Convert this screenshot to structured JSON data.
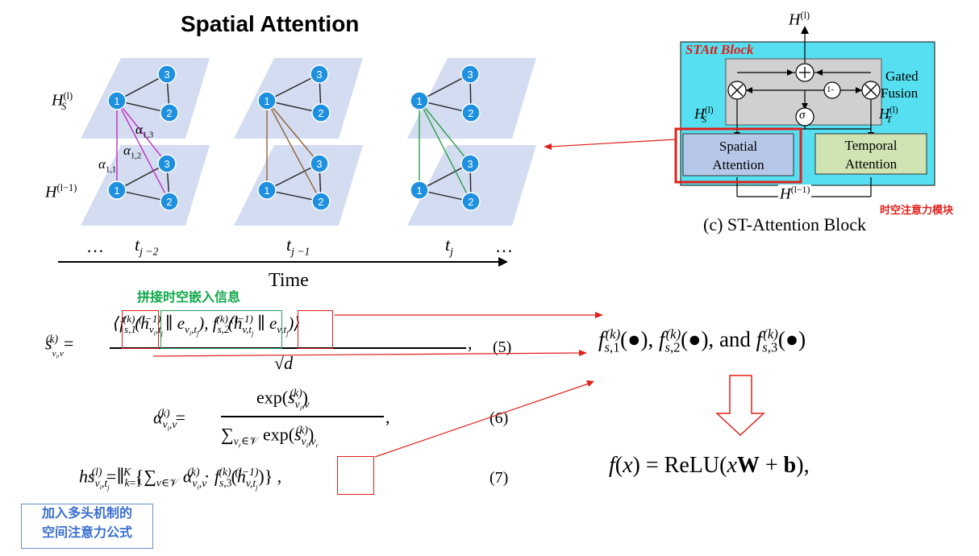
{
  "title": "Spatial Attention",
  "graph_labels": {
    "hs": "H",
    "hs_sup": "(l)",
    "hs_sub": "S",
    "h_prev": "H",
    "h_prev_sup": "(l−1)",
    "alpha13": "α",
    "alpha13_sub": "1,3",
    "alpha12": "α",
    "alpha12_sub": "1,2",
    "alpha11": "α",
    "alpha11_sub": "1,1",
    "node1": "1",
    "node2": "2",
    "node3": "3"
  },
  "timeline": {
    "ellipsis_left": "…",
    "t1": "t",
    "t1_sub": "j −2",
    "t2": "t",
    "t2_sub": "j −1",
    "t3": "t",
    "t3_sub": "j",
    "ellipsis_right": "…",
    "axis_label": "Time"
  },
  "block": {
    "block_title": "STAtt Block",
    "output_label": "H",
    "output_sup": "(l)",
    "gated_fusion_line1": "Gated",
    "gated_fusion_line2": "Fusion",
    "hs": "H",
    "hs_sup": "(l)",
    "hs_sub": "S",
    "ht": "H",
    "ht_sup": "(l)",
    "ht_sub": "T",
    "one_minus": "1-",
    "sigma": "σ",
    "spatial_line1": "Spatial",
    "spatial_line2": "Attention",
    "temporal_line1": "Temporal",
    "temporal_line2": "Attention",
    "input_label": "H",
    "input_sup": "(l−1)",
    "caption": "(c) ST-Attention Block",
    "red_note": "时空注意力模块"
  },
  "notes": {
    "green_note": "拼接时空嵌入信息",
    "blue_note_line1": "加入多头机制的",
    "blue_note_line2": "空间注意力公式"
  },
  "equations": {
    "eq5_number": "(5)",
    "eq6_number": "(6)",
    "eq7_number": "(7)"
  },
  "right_panel": {
    "and_text": "and",
    "relu_text": "ReLU"
  },
  "colors": {
    "node_fill": "#1e90e0",
    "plane_fill": "#d3dcf0",
    "edge_purple": "#c020c0",
    "edge_brown": "#8b5a2b",
    "edge_green": "#1a9a3a",
    "block_bg": "#55dff0",
    "gate_bg": "#d0d0d0",
    "spatial_bg": "#b6c7e8",
    "temporal_bg": "#cfe3b3",
    "highlight_red": "#e0201a",
    "highlight_green": "#20a060",
    "blue_note": "#3a6fd0"
  }
}
